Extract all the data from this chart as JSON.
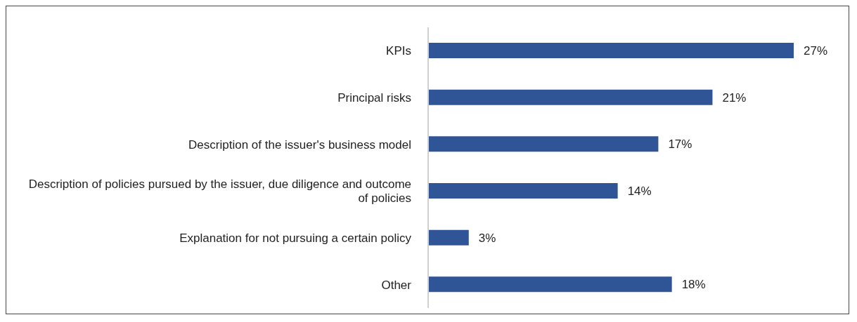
{
  "chart_data": {
    "type": "bar",
    "orientation": "horizontal",
    "categories": [
      "KPIs",
      "Principal risks",
      "Description of the issuer's business model",
      "Description of policies pursued by the issuer, due diligence and outcome of policies",
      "Explanation for not pursuing a certain policy",
      "Other"
    ],
    "values": [
      27,
      21,
      17,
      14,
      3,
      18
    ],
    "value_labels": [
      "27%",
      "21%",
      "17%",
      "14%",
      "3%",
      "18%"
    ],
    "color": "#2f5597",
    "grid": false,
    "legend": false
  }
}
